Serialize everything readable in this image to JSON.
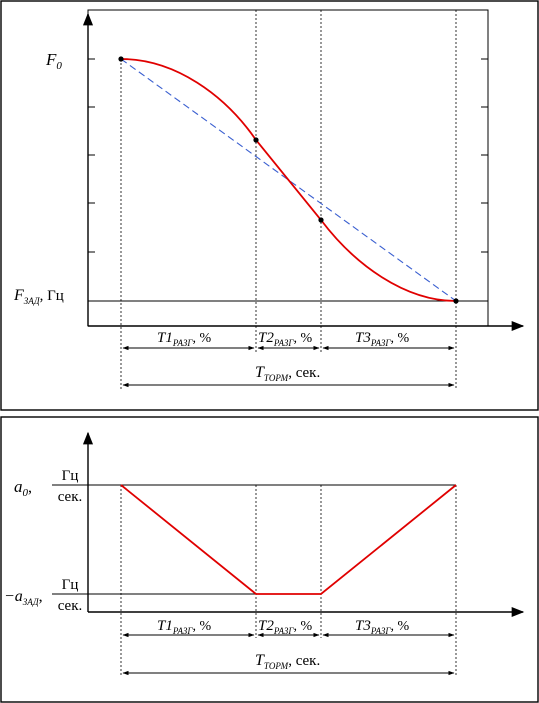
{
  "top_panel": {
    "y_label_f0_main": "F",
    "y_label_f0_sub": "0",
    "y_label_fzad_main": "F",
    "y_label_fzad_sub": "ЗАД",
    "y_label_fzad_unit": ", Гц",
    "dim_t1_main": "T1",
    "dim_t1_sub": "РАЗГ",
    "dim_t1_unit": ", %",
    "dim_t2_main": "T2",
    "dim_t2_sub": "РАЗГ",
    "dim_t2_unit": ", %",
    "dim_t3_main": "T3",
    "dim_t3_sub": "РАЗГ",
    "dim_t3_unit": ", %",
    "dim_total_main": "T",
    "dim_total_sub": "ТОРМ",
    "dim_total_unit": ", сек.",
    "colors": {
      "curve": "#e00000",
      "linear_reference": "#3a5fd0"
    }
  },
  "bottom_panel": {
    "a0_main": "a",
    "a0_sub": "0",
    "a0_comma": ",",
    "a0_frac_num": "Гц",
    "a0_frac_den": "сек.",
    "azad_main": "−a",
    "azad_sub": "ЗАД",
    "azad_comma": ",",
    "azad_frac_num": "Гц",
    "azad_frac_den": "сек.",
    "dim_t1_main": "T1",
    "dim_t1_sub": "РАЗГ",
    "dim_t1_unit": ", %",
    "dim_t2_main": "T2",
    "dim_t2_sub": "РАЗГ",
    "dim_t2_unit": ", %",
    "dim_t3_main": "T3",
    "dim_t3_sub": "РАЗГ",
    "dim_t3_unit": ", %",
    "dim_total_main": "T",
    "dim_total_sub": "ТОРМ",
    "dim_total_unit": ", сек.",
    "colors": {
      "profile": "#e00000"
    }
  }
}
